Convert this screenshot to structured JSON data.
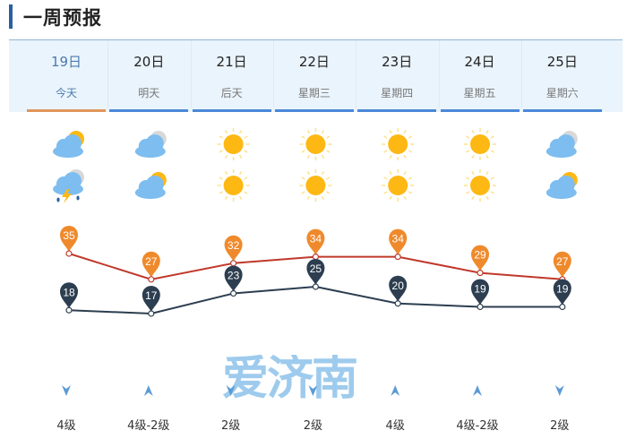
{
  "title": "一周预报",
  "days": [
    {
      "date": "19日",
      "label": "今天",
      "day_icon": "partly-cloudy-icon",
      "night_icon": "thunderstorm-icon",
      "high": 35,
      "low": 18,
      "wind": "4级",
      "wind_dir": "down"
    },
    {
      "date": "20日",
      "label": "明天",
      "day_icon": "cloudy-icon",
      "night_icon": "partly-cloudy-icon",
      "high": 27,
      "low": 17,
      "wind": "4级-2级",
      "wind_dir": "up"
    },
    {
      "date": "21日",
      "label": "后天",
      "day_icon": "sunny-icon",
      "night_icon": "sunny-icon",
      "high": 32,
      "low": 23,
      "wind": "2级",
      "wind_dir": "down"
    },
    {
      "date": "22日",
      "label": "星期三",
      "day_icon": "sunny-icon",
      "night_icon": "sunny-icon",
      "high": 34,
      "low": 25,
      "wind": "2级",
      "wind_dir": "down"
    },
    {
      "date": "23日",
      "label": "星期四",
      "day_icon": "sunny-icon",
      "night_icon": "sunny-icon",
      "high": 34,
      "low": 20,
      "wind": "4级",
      "wind_dir": "up"
    },
    {
      "date": "24日",
      "label": "星期五",
      "day_icon": "sunny-icon",
      "night_icon": "sunny-icon",
      "high": 29,
      "low": 19,
      "wind": "4级-2级",
      "wind_dir": "up"
    },
    {
      "date": "25日",
      "label": "星期六",
      "day_icon": "cloudy-icon",
      "night_icon": "partly-cloudy-icon",
      "high": 27,
      "low": 19,
      "wind": "2级",
      "wind_dir": "down"
    }
  ],
  "watermark": "爱济南",
  "colors": {
    "high_line": "#c0392b",
    "high_marker": "#ef8a2c",
    "low_line": "#2c3e50",
    "low_marker": "#2c3e50",
    "today_underline": "#e0955a",
    "underline": "#4a88d8"
  }
}
